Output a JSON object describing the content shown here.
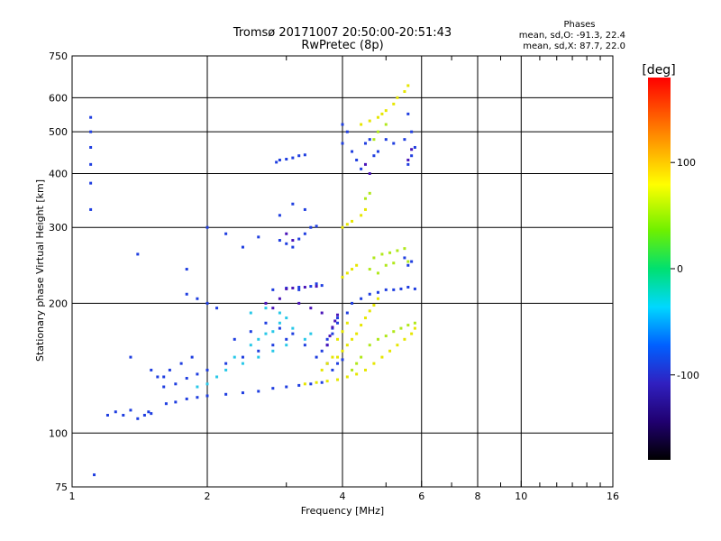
{
  "chart_data": {
    "type": "scatter",
    "title": "Tromsø 20171007 20:50:00-20:51:43",
    "subtitle": "RwPretec (8p)",
    "xlabel": "Frequency [MHz]",
    "ylabel": "Stationary phase Virtual Height [km]",
    "xscale": "log",
    "yscale": "log",
    "xlim": [
      1,
      16
    ],
    "ylim": [
      75,
      750
    ],
    "x_ticks": [
      1,
      2,
      4,
      6,
      8,
      10,
      16
    ],
    "x_tick_labels": [
      "1",
      "2",
      "4",
      "6",
      "8",
      "10",
      "16"
    ],
    "x_minor_ticks": [
      3,
      5,
      7,
      9,
      11,
      12,
      13,
      14,
      15
    ],
    "y_ticks": [
      75,
      100,
      200,
      300,
      400,
      500,
      600,
      750
    ],
    "y_tick_labels": [
      "75",
      "100",
      "200",
      "300",
      "400",
      "500",
      "600",
      "750"
    ],
    "grid": true,
    "legend": {
      "title": "Phases",
      "lines": [
        "mean, sd,O: -91.3, 22.4",
        "mean, sd,X:  87.7, 22.0"
      ],
      "placement": "top-right"
    },
    "colorbar": {
      "label": "[deg]",
      "range": [
        -180,
        180
      ],
      "ticks": [
        100,
        0,
        -100
      ],
      "tick_labels": [
        "100",
        "0",
        "-100"
      ]
    },
    "colors": {
      "o_mode": "#1f3ee0",
      "o_mode_dark": "#4a14b8",
      "x_mode": "#e6e600",
      "x_mode_alt": "#b0e81a",
      "cyan": "#28c8e8",
      "grid": "#000000"
    },
    "series": [
      {
        "color_key": "o_mode",
        "points": [
          [
            1.45,
            110
          ],
          [
            1.48,
            112
          ],
          [
            1.5,
            111
          ],
          [
            1.62,
            117
          ],
          [
            1.7,
            118
          ],
          [
            1.8,
            120
          ],
          [
            1.9,
            121
          ],
          [
            2.0,
            122
          ],
          [
            2.2,
            123
          ],
          [
            2.4,
            124
          ],
          [
            2.6,
            125
          ],
          [
            2.8,
            127
          ],
          [
            3.0,
            128
          ],
          [
            3.2,
            129
          ],
          [
            3.4,
            130
          ],
          [
            3.6,
            131
          ],
          [
            1.6,
            128
          ],
          [
            1.7,
            130
          ],
          [
            1.8,
            134
          ],
          [
            1.9,
            137
          ],
          [
            2.0,
            140
          ],
          [
            2.2,
            145
          ],
          [
            2.4,
            150
          ],
          [
            2.6,
            155
          ],
          [
            2.8,
            160
          ],
          [
            3.0,
            165
          ],
          [
            1.6,
            135
          ],
          [
            1.65,
            140
          ],
          [
            1.75,
            145
          ],
          [
            1.85,
            150
          ],
          [
            2.3,
            165
          ],
          [
            2.5,
            172
          ],
          [
            2.7,
            180
          ],
          [
            2.9,
            175
          ],
          [
            3.1,
            170
          ],
          [
            3.3,
            160
          ],
          [
            3.5,
            150
          ],
          [
            3.7,
            145
          ],
          [
            2.8,
            215
          ],
          [
            3.0,
            217
          ],
          [
            3.2,
            218
          ],
          [
            3.4,
            219
          ],
          [
            3.6,
            220
          ],
          [
            3.2,
            215
          ],
          [
            3.5,
            222
          ],
          [
            3.7,
            160
          ],
          [
            3.8,
            170
          ],
          [
            3.9,
            180
          ],
          [
            4.1,
            190
          ],
          [
            4.2,
            200
          ],
          [
            4.4,
            205
          ],
          [
            4.6,
            210
          ],
          [
            4.8,
            212
          ],
          [
            5.0,
            215
          ],
          [
            5.2,
            215
          ],
          [
            5.4,
            216
          ],
          [
            5.6,
            218
          ],
          [
            5.8,
            216
          ],
          [
            5.6,
            245
          ],
          [
            5.7,
            250
          ],
          [
            5.5,
            255
          ],
          [
            5.6,
            420
          ],
          [
            5.7,
            440
          ],
          [
            5.8,
            460
          ],
          [
            5.5,
            480
          ],
          [
            5.7,
            500
          ],
          [
            5.6,
            550
          ],
          [
            4.0,
            520
          ],
          [
            4.1,
            500
          ],
          [
            4.0,
            470
          ],
          [
            4.2,
            450
          ],
          [
            4.3,
            430
          ],
          [
            4.4,
            410
          ],
          [
            4.5,
            470
          ],
          [
            4.6,
            480
          ],
          [
            4.7,
            440
          ],
          [
            4.8,
            450
          ],
          [
            5.0,
            480
          ],
          [
            5.2,
            470
          ],
          [
            2.85,
            425
          ],
          [
            2.9,
            430
          ],
          [
            3.0,
            432
          ],
          [
            3.1,
            435
          ],
          [
            3.2,
            440
          ],
          [
            3.3,
            442
          ],
          [
            2.9,
            280
          ],
          [
            3.0,
            275
          ],
          [
            3.1,
            270
          ],
          [
            3.2,
            282
          ],
          [
            3.3,
            290
          ],
          [
            3.4,
            300
          ],
          [
            3.5,
            302
          ],
          [
            2.9,
            320
          ],
          [
            3.1,
            340
          ],
          [
            3.3,
            330
          ],
          [
            2.0,
            300
          ],
          [
            2.2,
            290
          ],
          [
            2.4,
            270
          ],
          [
            2.6,
            285
          ],
          [
            1.8,
            210
          ],
          [
            1.9,
            205
          ],
          [
            2.0,
            200
          ],
          [
            2.1,
            195
          ],
          [
            1.2,
            110
          ],
          [
            1.25,
            112
          ],
          [
            1.3,
            110
          ],
          [
            1.35,
            113
          ],
          [
            1.4,
            108
          ],
          [
            1.1,
            540
          ],
          [
            1.1,
            500
          ],
          [
            1.1,
            460
          ],
          [
            1.1,
            420
          ],
          [
            1.1,
            380
          ],
          [
            1.1,
            330
          ],
          [
            1.12,
            80
          ],
          [
            1.4,
            260
          ],
          [
            1.8,
            240
          ],
          [
            1.35,
            150
          ],
          [
            1.5,
            140
          ],
          [
            1.55,
            135
          ],
          [
            3.8,
            140
          ],
          [
            3.9,
            145
          ],
          [
            4.0,
            148
          ],
          [
            3.6,
            155
          ],
          [
            3.7,
            165
          ],
          [
            3.8,
            175
          ],
          [
            3.9,
            185
          ]
        ]
      },
      {
        "color_key": "o_mode_dark",
        "points": [
          [
            3.0,
            216
          ],
          [
            3.1,
            217
          ],
          [
            3.3,
            218
          ],
          [
            3.5,
            219
          ],
          [
            3.7,
            160
          ],
          [
            3.75,
            168
          ],
          [
            3.8,
            176
          ],
          [
            3.85,
            182
          ],
          [
            3.9,
            188
          ],
          [
            4.5,
            420
          ],
          [
            4.6,
            400
          ],
          [
            5.6,
            430
          ],
          [
            5.7,
            455
          ],
          [
            3.0,
            290
          ],
          [
            3.1,
            280
          ],
          [
            2.7,
            200
          ],
          [
            2.8,
            195
          ],
          [
            2.9,
            205
          ],
          [
            3.2,
            200
          ],
          [
            3.4,
            195
          ],
          [
            3.6,
            190
          ]
        ]
      },
      {
        "color_key": "cyan",
        "points": [
          [
            2.2,
            140
          ],
          [
            2.3,
            150
          ],
          [
            2.5,
            160
          ],
          [
            2.6,
            165
          ],
          [
            2.7,
            170
          ],
          [
            2.8,
            172
          ],
          [
            2.9,
            180
          ],
          [
            3.0,
            185
          ],
          [
            3.1,
            175
          ],
          [
            2.4,
            145
          ],
          [
            2.6,
            150
          ],
          [
            2.8,
            155
          ],
          [
            3.0,
            160
          ],
          [
            2.1,
            135
          ],
          [
            2.0,
            130
          ],
          [
            1.9,
            128
          ],
          [
            3.3,
            165
          ],
          [
            3.4,
            170
          ],
          [
            2.5,
            190
          ],
          [
            2.7,
            195
          ],
          [
            2.9,
            190
          ]
        ]
      },
      {
        "color_key": "x_mode",
        "points": [
          [
            3.3,
            130
          ],
          [
            3.5,
            131
          ],
          [
            3.7,
            132
          ],
          [
            3.9,
            133
          ],
          [
            4.1,
            135
          ],
          [
            4.3,
            137
          ],
          [
            4.5,
            140
          ],
          [
            4.7,
            145
          ],
          [
            4.9,
            150
          ],
          [
            5.1,
            155
          ],
          [
            5.3,
            160
          ],
          [
            5.5,
            165
          ],
          [
            5.7,
            170
          ],
          [
            5.8,
            175
          ],
          [
            3.9,
            150
          ],
          [
            4.0,
            155
          ],
          [
            4.1,
            160
          ],
          [
            4.2,
            165
          ],
          [
            4.3,
            170
          ],
          [
            4.4,
            178
          ],
          [
            4.5,
            185
          ],
          [
            4.6,
            192
          ],
          [
            4.7,
            198
          ],
          [
            4.8,
            205
          ],
          [
            4.0,
            230
          ],
          [
            4.1,
            235
          ],
          [
            4.2,
            240
          ],
          [
            4.3,
            245
          ],
          [
            4.0,
            300
          ],
          [
            4.1,
            305
          ],
          [
            4.2,
            310
          ],
          [
            4.4,
            320
          ],
          [
            4.5,
            330
          ],
          [
            4.9,
            550
          ],
          [
            5.0,
            560
          ],
          [
            5.2,
            580
          ],
          [
            5.3,
            600
          ],
          [
            5.5,
            620
          ],
          [
            5.6,
            640
          ],
          [
            4.4,
            520
          ],
          [
            4.6,
            530
          ],
          [
            4.8,
            540
          ],
          [
            3.6,
            140
          ],
          [
            3.7,
            145
          ],
          [
            3.8,
            150
          ],
          [
            3.9,
            165
          ],
          [
            4.0,
            172
          ],
          [
            4.1,
            180
          ]
        ]
      },
      {
        "color_key": "x_mode_alt",
        "points": [
          [
            4.7,
            255
          ],
          [
            4.9,
            260
          ],
          [
            5.1,
            262
          ],
          [
            5.3,
            265
          ],
          [
            5.5,
            268
          ],
          [
            5.6,
            250
          ],
          [
            5.0,
            245
          ],
          [
            5.2,
            248
          ],
          [
            4.6,
            240
          ],
          [
            4.8,
            235
          ],
          [
            4.6,
            160
          ],
          [
            4.8,
            165
          ],
          [
            5.0,
            168
          ],
          [
            5.2,
            172
          ],
          [
            5.4,
            175
          ],
          [
            5.6,
            178
          ],
          [
            5.8,
            180
          ],
          [
            4.4,
            150
          ],
          [
            4.3,
            145
          ],
          [
            4.2,
            140
          ],
          [
            4.5,
            350
          ],
          [
            4.6,
            360
          ],
          [
            4.7,
            480
          ],
          [
            4.8,
            500
          ],
          [
            5.0,
            520
          ]
        ]
      }
    ]
  }
}
